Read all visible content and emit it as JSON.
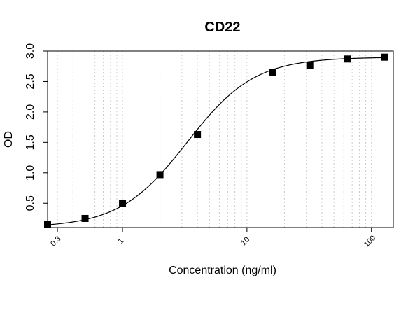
{
  "chart_data": {
    "type": "scatter",
    "title": "CD22",
    "xlabel": "Concentration (ng/ml)",
    "ylabel": "OD",
    "x_scale": "log",
    "xlim": [
      0.25,
      150
    ],
    "ylim": [
      0.1,
      3.0
    ],
    "x_tick_values": [
      0.3,
      1,
      10,
      100
    ],
    "x_tick_labels": [
      "0.3",
      "1",
      "10",
      "100"
    ],
    "y_tick_values": [
      0.5,
      1.0,
      1.5,
      2.0,
      2.5,
      3.0
    ],
    "y_tick_labels": [
      "0.5",
      "1.0",
      "1.5",
      "2.0",
      "2.5",
      "3.0"
    ],
    "grid": "vertical dotted at log decades",
    "series": [
      {
        "marker": "square",
        "x": [
          0.25,
          0.5,
          1,
          2,
          4,
          16,
          32,
          64,
          128
        ],
        "y": [
          0.15,
          0.25,
          0.5,
          0.97,
          1.63,
          2.65,
          2.76,
          2.87,
          2.9
        ]
      }
    ],
    "fit_curve": {
      "model": "4PL",
      "bottom": 0.1,
      "top": 2.9,
      "ec50": 3.3,
      "hill": 1.6
    },
    "colors": {
      "marker": "#000000",
      "curve": "#000000",
      "grid": "#cccccc"
    }
  }
}
